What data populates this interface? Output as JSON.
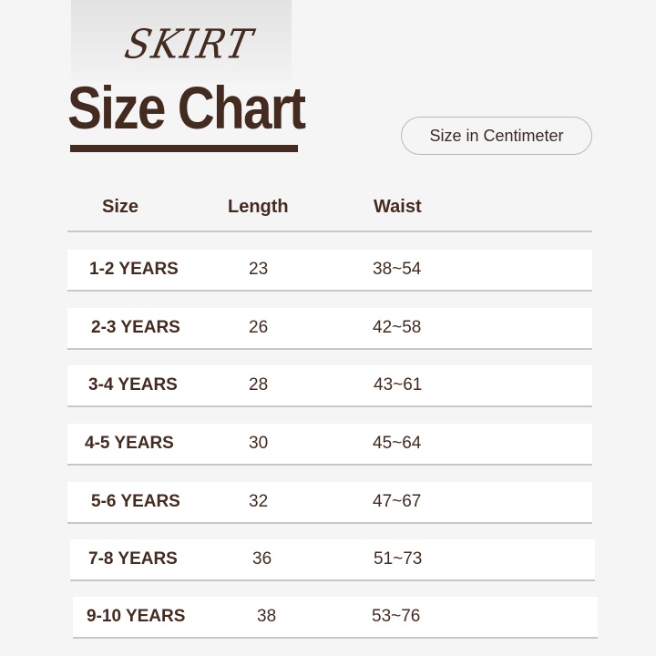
{
  "header": {
    "script_title": "SKIRT",
    "title": "Size Chart",
    "unit_label": "Size in Centimeter"
  },
  "table": {
    "columns": [
      "Size",
      "Length",
      "Waist"
    ],
    "rows": [
      {
        "size": "1-2 YEARS",
        "length": "23",
        "waist": "38~54"
      },
      {
        "size": "2-3 YEARS",
        "length": "26",
        "waist": "42~58"
      },
      {
        "size": "3-4 YEARS",
        "length": "28",
        "waist": "43~61"
      },
      {
        "size": "4-5 YEARS",
        "length": "30",
        "waist": "45~64"
      },
      {
        "size": "5-6 YEARS",
        "length": "32",
        "waist": "47~67"
      },
      {
        "size": "7-8 YEARS",
        "length": "36",
        "waist": "51~73"
      },
      {
        "size": "9-10 YEARS",
        "length": "38",
        "waist": "53~76"
      }
    ]
  },
  "colors": {
    "brand_brown": "#442b1f",
    "background": "#f5f5f5"
  }
}
